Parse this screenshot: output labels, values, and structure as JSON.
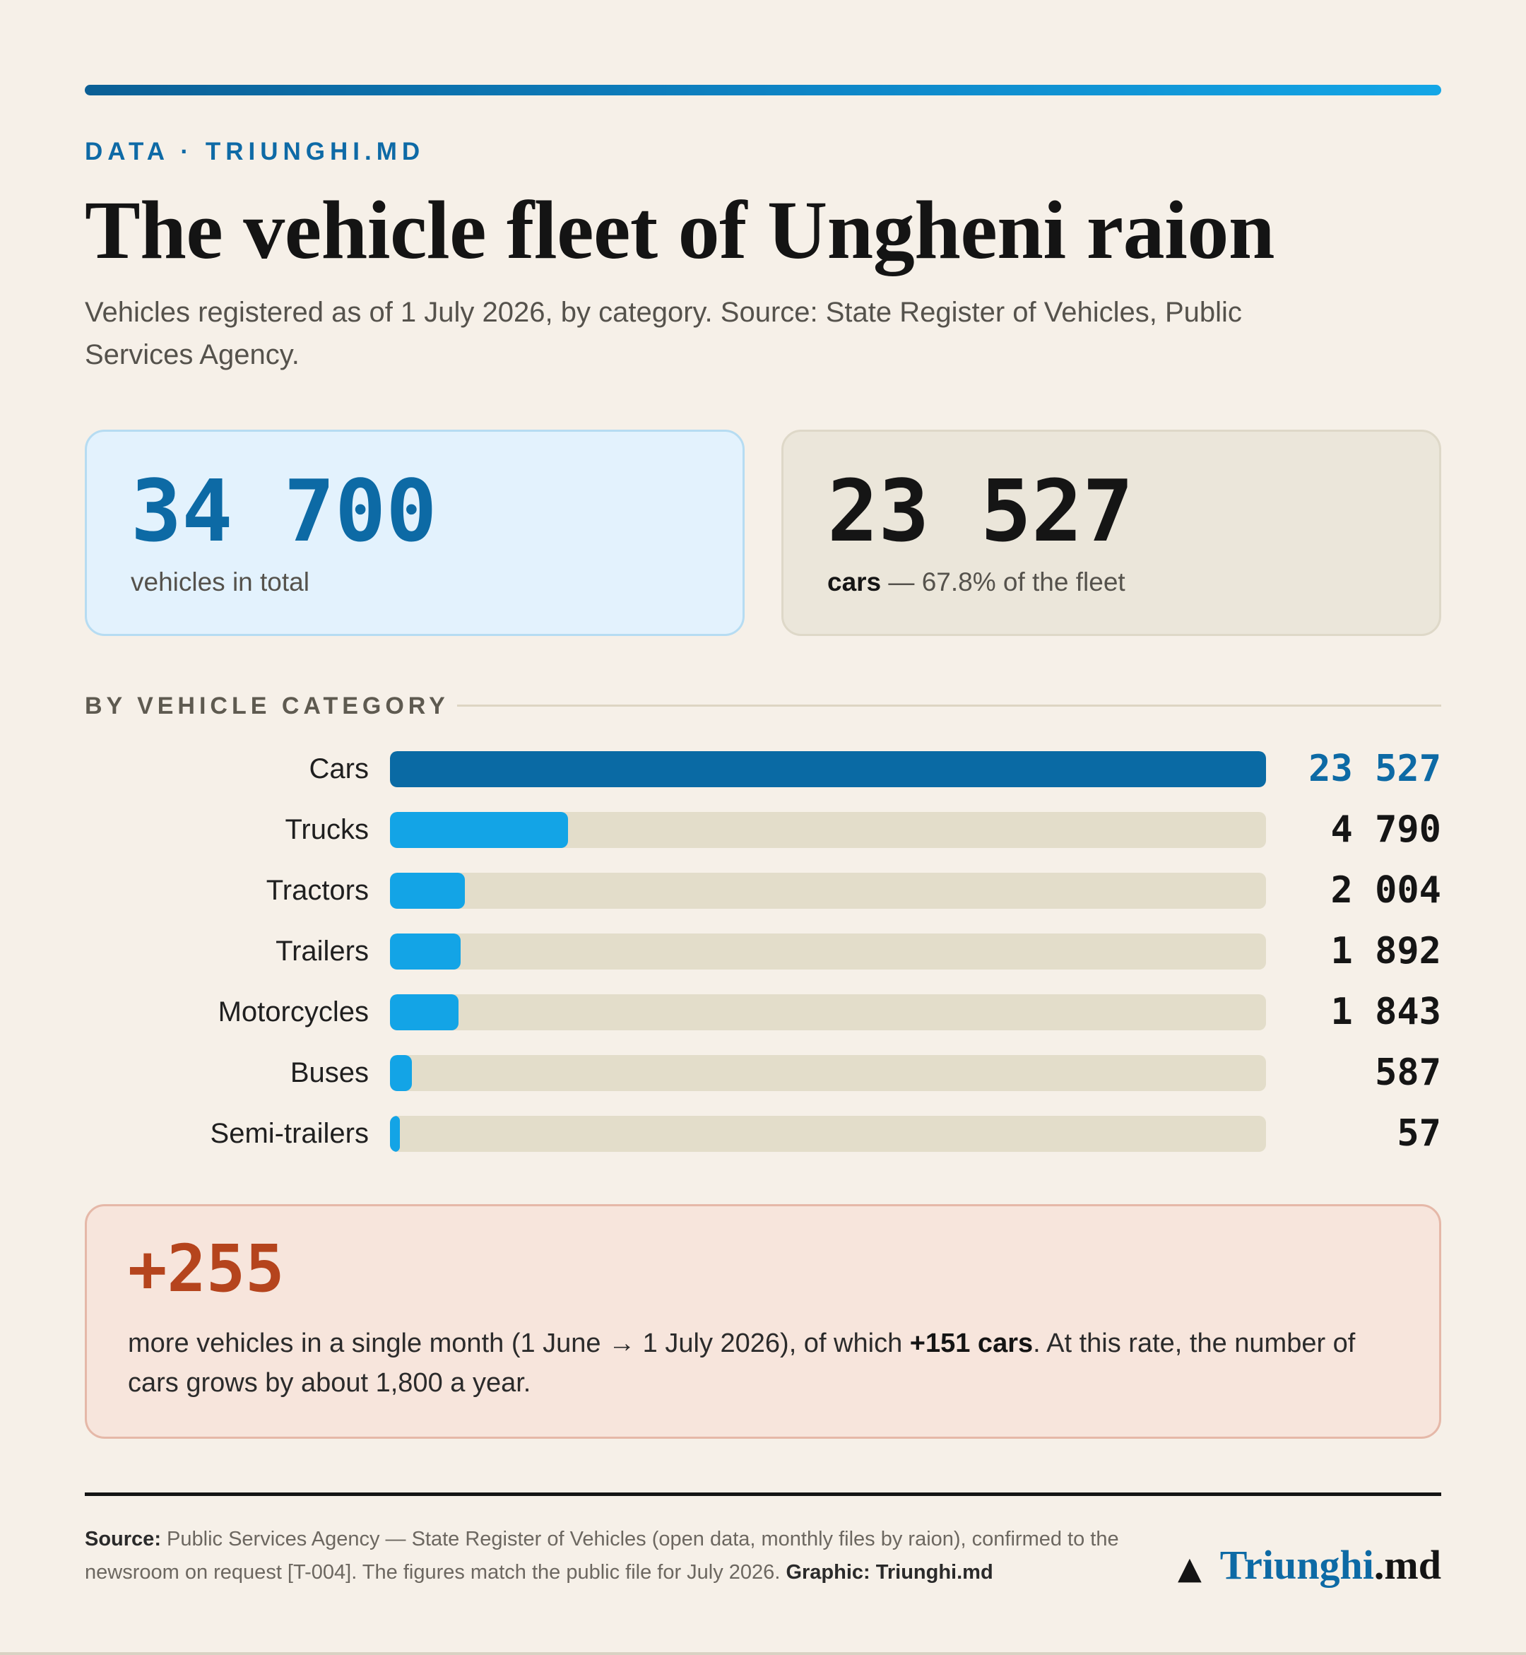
{
  "header": {
    "kicker": "DATA · TRIUNGHI.MD",
    "title": "The vehicle fleet of Ungheni raion",
    "subtitle": "Vehicles registered as of 1 July 2026, by category. Source: State Register of Vehicles, Public Services Agency."
  },
  "cards": {
    "total": {
      "value": "34 700",
      "label": "vehicles in total"
    },
    "cars": {
      "value": "23 527",
      "label_strong": "cars",
      "label_rest": " — 67.8% of the fleet"
    }
  },
  "section": {
    "heading": "BY VEHICLE CATEGORY"
  },
  "chart_data": {
    "type": "bar",
    "orientation": "horizontal",
    "title": "BY VEHICLE CATEGORY",
    "categories": [
      "Cars",
      "Trucks",
      "Tractors",
      "Trailers",
      "Motorcycles",
      "Buses",
      "Semi-trailers"
    ],
    "values": [
      23527,
      4790,
      2004,
      1892,
      1843,
      587,
      57
    ],
    "value_labels": [
      "23 527",
      "4 790",
      "2 004",
      "1 892",
      "1 843",
      "587",
      "57"
    ],
    "xlim": [
      0,
      23527
    ],
    "grid": false,
    "highlight_index": 0,
    "colors": {
      "highlight": "#0a6aa4",
      "bar": "#13a4e6",
      "track": "#e3ddca"
    }
  },
  "callout": {
    "value": "+255",
    "text_before": "more vehicles in a single month (1 June → 1 July 2026), of which ",
    "text_strong": "+151 cars",
    "text_after": ". At this rate, the number of cars grows by about 1,800 a year."
  },
  "footer": {
    "source_label": "Source:",
    "source_text": " Public Services Agency — State Register of Vehicles (open data, monthly files by raion), confirmed to the newsroom on request [T-004]. The figures match the public file for July 2026. ",
    "graphic_credit": "Graphic: Triunghi.md",
    "brand_name": "Triunghi",
    "brand_tld": ".md",
    "brand_icon": "triangle-icon"
  },
  "colors": {
    "accent": "#0d6aa5",
    "background": "#f6f0e8",
    "callout_accent": "#b5441d"
  }
}
